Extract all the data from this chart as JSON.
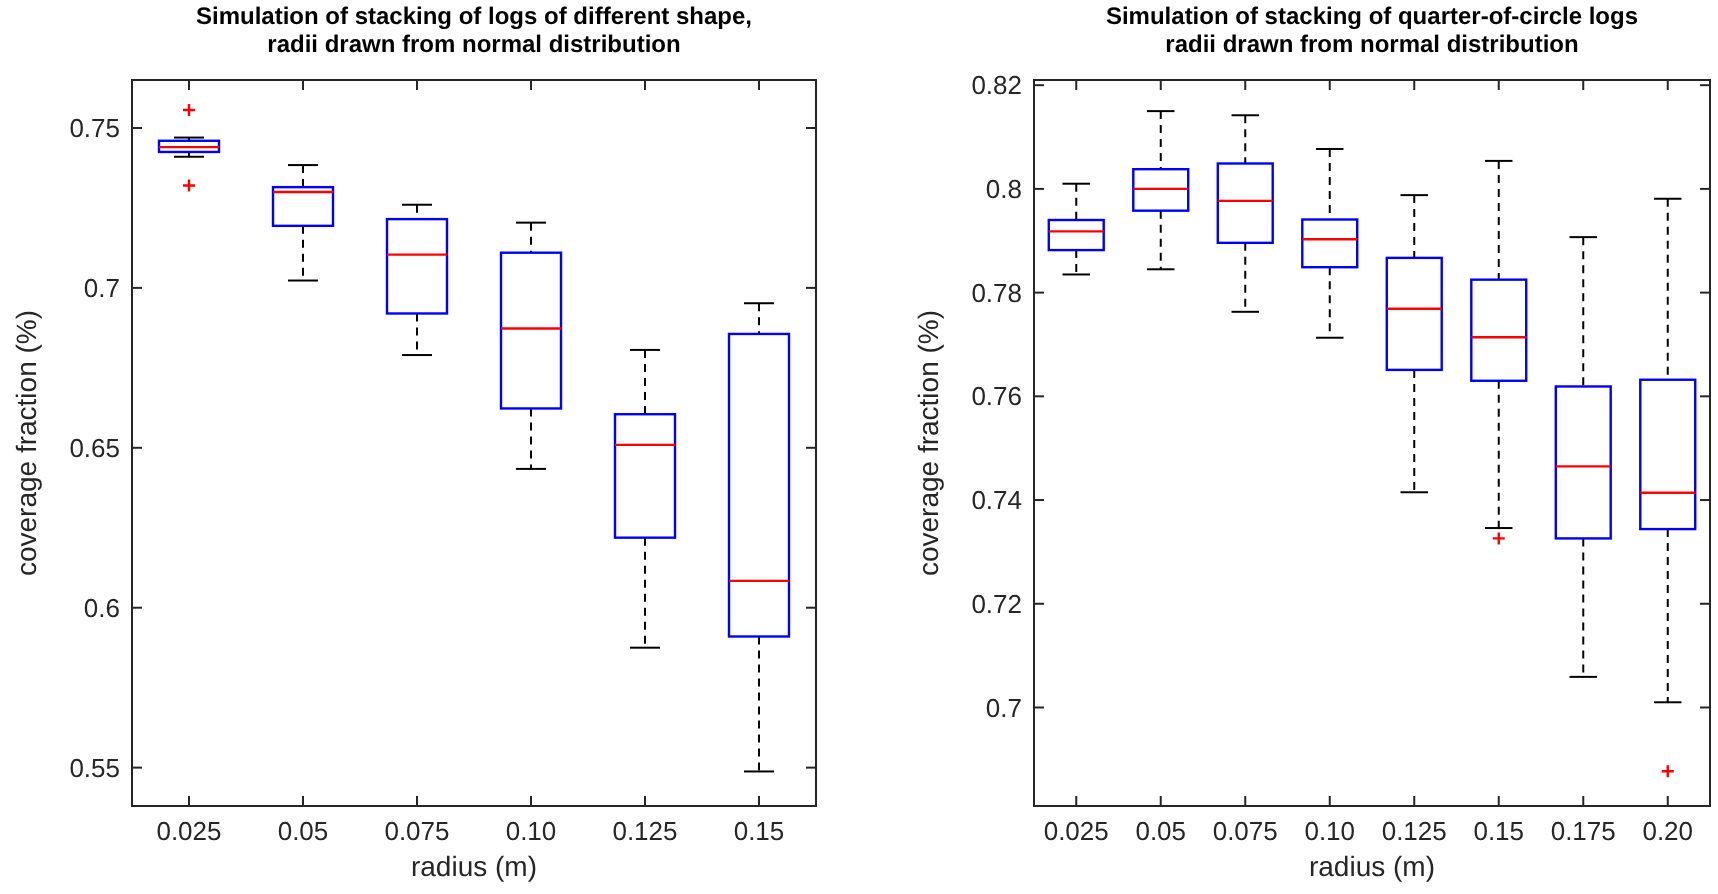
{
  "chart_data": [
    {
      "type": "box",
      "title": "Simulation of stacking of logs of different shape,\nradii drawn from normal distribution",
      "xlabel": "radius (m)",
      "ylabel": "coverage fraction (%)",
      "color": "#0000ff",
      "categories": [
        "0.025",
        "0.05",
        "0.075",
        "0.10",
        "0.125",
        "0.15"
      ],
      "boxes": [
        {
          "low": 0.741,
          "q1": 0.7425,
          "median": 0.744,
          "q3": 0.746,
          "high": 0.747,
          "outliers": [
            0.7556,
            0.732
          ]
        },
        {
          "low": 0.7023,
          "q1": 0.7194,
          "median": 0.73,
          "q3": 0.7315,
          "high": 0.7384
        },
        {
          "low": 0.679,
          "q1": 0.692,
          "median": 0.7104,
          "q3": 0.7215,
          "high": 0.726
        },
        {
          "low": 0.6434,
          "q1": 0.6623,
          "median": 0.6873,
          "q3": 0.711,
          "high": 0.7204
        },
        {
          "low": 0.5875,
          "q1": 0.6219,
          "median": 0.6509,
          "q3": 0.6605,
          "high": 0.6806
        },
        {
          "low": 0.5488,
          "q1": 0.591,
          "median": 0.6084,
          "q3": 0.6856,
          "high": 0.6952
        }
      ],
      "ylim": [
        0.538,
        0.765
      ],
      "yticks": [
        0.55,
        0.6,
        0.65,
        0.7,
        0.75
      ]
    },
    {
      "type": "box",
      "title": "Simulation of stacking of quarter-of-circle logs\nradii drawn from normal distribution",
      "xlabel": "radius (m)",
      "ylabel": "coverage fraction (%)",
      "color": "#0000ff",
      "categories": [
        "0.025",
        "0.05",
        "0.075",
        "0.10",
        "0.125",
        "0.15",
        "0.175",
        "0.20"
      ],
      "boxes": [
        {
          "low": 0.7835,
          "q1": 0.7882,
          "median": 0.7918,
          "q3": 0.794,
          "high": 0.801
        },
        {
          "low": 0.7845,
          "q1": 0.7958,
          "median": 0.8,
          "q3": 0.8038,
          "high": 0.815
        },
        {
          "low": 0.7763,
          "q1": 0.7896,
          "median": 0.7977,
          "q3": 0.8049,
          "high": 0.8142
        },
        {
          "low": 0.7713,
          "q1": 0.7849,
          "median": 0.7903,
          "q3": 0.7941,
          "high": 0.8077
        },
        {
          "low": 0.7415,
          "q1": 0.7651,
          "median": 0.7769,
          "q3": 0.7867,
          "high": 0.7988
        },
        {
          "low": 0.7346,
          "q1": 0.763,
          "median": 0.7714,
          "q3": 0.7825,
          "high": 0.8054,
          "outliers": [
            0.7326
          ]
        },
        {
          "low": 0.7059,
          "q1": 0.7326,
          "median": 0.7465,
          "q3": 0.7619,
          "high": 0.7907
        },
        {
          "low": 0.701,
          "q1": 0.7344,
          "median": 0.7414,
          "q3": 0.7632,
          "high": 0.7981,
          "outliers": [
            0.6877
          ]
        }
      ],
      "ylim": [
        0.681,
        0.821
      ],
      "yticks": [
        0.7,
        0.72,
        0.74,
        0.76,
        0.78,
        0.8,
        0.82
      ]
    }
  ]
}
